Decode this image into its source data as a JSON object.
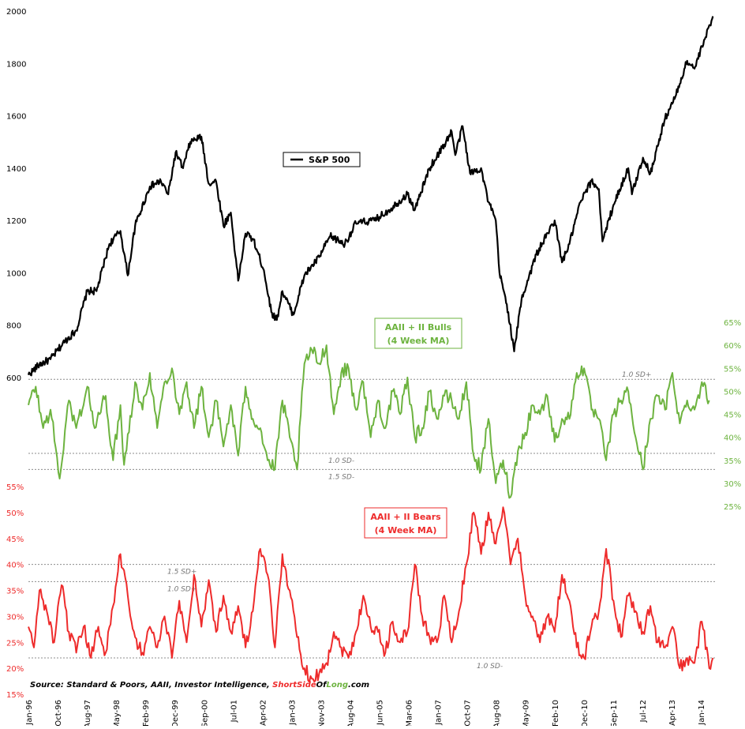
{
  "chart_data": {
    "type": "line",
    "source": {
      "prefix": "Source: Standard & Poors, AAII, Investor Intelligence, ",
      "brand_a": "ShortSide",
      "brand_b": "Of",
      "brand_c": "Long",
      "brand_d": ".com"
    },
    "x_ticks": [
      "Jan-96",
      "Oct-96",
      "Aug-97",
      "May-98",
      "Feb-99",
      "Dec-99",
      "Sep-00",
      "Jul-01",
      "Apr-02",
      "Jan-03",
      "Nov-03",
      "Aug-04",
      "Jun-05",
      "Mar-06",
      "Jan-07",
      "Oct-07",
      "Aug-08",
      "May-09",
      "Feb-10",
      "Dec-10",
      "Sep-11",
      "Jul-12",
      "Apr-13",
      "Jan-14"
    ],
    "x_range": [
      1996.0,
      2014.7
    ],
    "colors": {
      "sp500": "#000000",
      "bulls": "#6db33f",
      "bears": "#ee2b2b",
      "sd_line": "#8c8c8c"
    },
    "panels": [
      {
        "id": "sp500",
        "legend": "S&P 500",
        "y_ticks": [
          600,
          800,
          1000,
          1200,
          1400,
          1600,
          1800,
          2000
        ],
        "y_range": [
          600,
          2000
        ],
        "keypoints": [
          [
            1996.0,
            610
          ],
          [
            1996.3,
            650
          ],
          [
            1996.6,
            670
          ],
          [
            1997.0,
            740
          ],
          [
            1997.3,
            780
          ],
          [
            1997.6,
            930
          ],
          [
            1997.85,
            930
          ],
          [
            1998.2,
            1110
          ],
          [
            1998.5,
            1160
          ],
          [
            1998.7,
            990
          ],
          [
            1998.9,
            1180
          ],
          [
            1999.3,
            1330
          ],
          [
            1999.6,
            1350
          ],
          [
            1999.8,
            1300
          ],
          [
            2000.0,
            1460
          ],
          [
            2000.2,
            1400
          ],
          [
            2000.4,
            1500
          ],
          [
            2000.7,
            1520
          ],
          [
            2000.9,
            1340
          ],
          [
            2001.1,
            1350
          ],
          [
            2001.3,
            1180
          ],
          [
            2001.5,
            1230
          ],
          [
            2001.7,
            970
          ],
          [
            2001.9,
            1150
          ],
          [
            2002.1,
            1130
          ],
          [
            2002.4,
            1010
          ],
          [
            2002.6,
            850
          ],
          [
            2002.75,
            820
          ],
          [
            2002.9,
            930
          ],
          [
            2003.2,
            840
          ],
          [
            2003.5,
            990
          ],
          [
            2003.9,
            1060
          ],
          [
            2004.2,
            1140
          ],
          [
            2004.6,
            1110
          ],
          [
            2004.9,
            1190
          ],
          [
            2005.4,
            1200
          ],
          [
            2005.8,
            1240
          ],
          [
            2006.3,
            1300
          ],
          [
            2006.5,
            1240
          ],
          [
            2006.9,
            1400
          ],
          [
            2007.3,
            1490
          ],
          [
            2007.5,
            1540
          ],
          [
            2007.6,
            1450
          ],
          [
            2007.8,
            1560
          ],
          [
            2008.0,
            1380
          ],
          [
            2008.3,
            1400
          ],
          [
            2008.5,
            1270
          ],
          [
            2008.7,
            1200
          ],
          [
            2008.8,
            1000
          ],
          [
            2009.0,
            880
          ],
          [
            2009.2,
            700
          ],
          [
            2009.4,
            900
          ],
          [
            2009.8,
            1070
          ],
          [
            2010.3,
            1200
          ],
          [
            2010.5,
            1040
          ],
          [
            2010.7,
            1110
          ],
          [
            2011.0,
            1270
          ],
          [
            2011.3,
            1350
          ],
          [
            2011.5,
            1320
          ],
          [
            2011.6,
            1120
          ],
          [
            2011.9,
            1260
          ],
          [
            2012.3,
            1400
          ],
          [
            2012.4,
            1300
          ],
          [
            2012.7,
            1440
          ],
          [
            2012.9,
            1380
          ],
          [
            2013.3,
            1590
          ],
          [
            2013.6,
            1680
          ],
          [
            2013.9,
            1810
          ],
          [
            2014.1,
            1780
          ],
          [
            2014.4,
            1900
          ],
          [
            2014.6,
            1980
          ]
        ]
      },
      {
        "id": "bulls",
        "title_line1": "AAII + II Bulls",
        "title_line2": "(4 Week MA)",
        "y_ticks": [
          "65%",
          "60%",
          "55%",
          "50%",
          "45%",
          "40%",
          "35%",
          "30%",
          "25%"
        ],
        "y_ticks_values": [
          65,
          60,
          55,
          50,
          45,
          40,
          35,
          30,
          25
        ],
        "y_range": [
          25,
          65
        ],
        "sd_lines": [
          {
            "value": 52.6,
            "label": "1.0 SD+"
          },
          {
            "value": 36.5,
            "label": "1.0 SD-"
          },
          {
            "value": 33.0,
            "label": "1.5 SD-"
          }
        ],
        "keypoints": [
          [
            1996.0,
            47
          ],
          [
            1996.2,
            51
          ],
          [
            1996.4,
            42
          ],
          [
            1996.6,
            46
          ],
          [
            1996.85,
            31
          ],
          [
            1997.1,
            48
          ],
          [
            1997.3,
            42
          ],
          [
            1997.6,
            51
          ],
          [
            1997.8,
            42
          ],
          [
            1998.1,
            49
          ],
          [
            1998.3,
            35
          ],
          [
            1998.5,
            47
          ],
          [
            1998.6,
            34
          ],
          [
            1998.9,
            52
          ],
          [
            1999.1,
            46
          ],
          [
            1999.3,
            54
          ],
          [
            1999.5,
            42
          ],
          [
            1999.7,
            52
          ],
          [
            1999.9,
            55
          ],
          [
            2000.1,
            45
          ],
          [
            2000.3,
            52
          ],
          [
            2000.5,
            42
          ],
          [
            2000.7,
            51
          ],
          [
            2000.9,
            40
          ],
          [
            2001.1,
            48
          ],
          [
            2001.3,
            38
          ],
          [
            2001.5,
            47
          ],
          [
            2001.7,
            36
          ],
          [
            2001.9,
            51
          ],
          [
            2002.1,
            44
          ],
          [
            2002.3,
            42
          ],
          [
            2002.5,
            35
          ],
          [
            2002.7,
            33
          ],
          [
            2002.9,
            48
          ],
          [
            2003.1,
            40
          ],
          [
            2003.3,
            33
          ],
          [
            2003.5,
            56
          ],
          [
            2003.7,
            59
          ],
          [
            2003.9,
            56
          ],
          [
            2004.1,
            60
          ],
          [
            2004.3,
            45
          ],
          [
            2004.5,
            54
          ],
          [
            2004.7,
            55
          ],
          [
            2004.9,
            46
          ],
          [
            2005.1,
            52
          ],
          [
            2005.3,
            40
          ],
          [
            2005.5,
            48
          ],
          [
            2005.7,
            42
          ],
          [
            2005.9,
            50
          ],
          [
            2006.1,
            45
          ],
          [
            2006.3,
            53
          ],
          [
            2006.5,
            40
          ],
          [
            2006.7,
            42
          ],
          [
            2006.9,
            50
          ],
          [
            2007.1,
            44
          ],
          [
            2007.3,
            49
          ],
          [
            2007.5,
            48
          ],
          [
            2007.7,
            44
          ],
          [
            2007.9,
            52
          ],
          [
            2008.1,
            36
          ],
          [
            2008.3,
            33
          ],
          [
            2008.5,
            44
          ],
          [
            2008.7,
            30
          ],
          [
            2008.9,
            35
          ],
          [
            2009.1,
            27
          ],
          [
            2009.3,
            37
          ],
          [
            2009.5,
            41
          ],
          [
            2009.7,
            47
          ],
          [
            2009.9,
            45
          ],
          [
            2010.1,
            49
          ],
          [
            2010.3,
            39
          ],
          [
            2010.5,
            44
          ],
          [
            2010.7,
            44
          ],
          [
            2010.9,
            54
          ],
          [
            2011.1,
            55
          ],
          [
            2011.3,
            46
          ],
          [
            2011.5,
            44
          ],
          [
            2011.7,
            35
          ],
          [
            2011.9,
            45
          ],
          [
            2012.1,
            48
          ],
          [
            2012.3,
            50
          ],
          [
            2012.5,
            40
          ],
          [
            2012.7,
            33
          ],
          [
            2012.9,
            44
          ],
          [
            2013.1,
            49
          ],
          [
            2013.3,
            46
          ],
          [
            2013.5,
            54
          ],
          [
            2013.7,
            43
          ],
          [
            2013.9,
            48
          ],
          [
            2014.1,
            46
          ],
          [
            2014.3,
            52
          ],
          [
            2014.5,
            48
          ]
        ]
      },
      {
        "id": "bears",
        "title_line1": "AAII + II Bears",
        "title_line2": "(4 Week MA)",
        "y_ticks": [
          "55%",
          "50%",
          "45%",
          "40%",
          "35%",
          "30%",
          "25%",
          "20%",
          "15%"
        ],
        "y_ticks_values": [
          55,
          50,
          45,
          40,
          35,
          30,
          25,
          20,
          15
        ],
        "y_range": [
          15,
          55
        ],
        "sd_lines": [
          {
            "value": 40.0,
            "label": "1.5 SD+"
          },
          {
            "value": 36.7,
            "label": "1.0 SD+"
          },
          {
            "value": 22.0,
            "label": "1.0 SD-"
          }
        ],
        "keypoints": [
          [
            1996.0,
            28
          ],
          [
            1996.15,
            24
          ],
          [
            1996.3,
            35
          ],
          [
            1996.5,
            31
          ],
          [
            1996.7,
            25
          ],
          [
            1996.9,
            36
          ],
          [
            1997.1,
            27
          ],
          [
            1997.3,
            23
          ],
          [
            1997.5,
            28
          ],
          [
            1997.7,
            22
          ],
          [
            1997.9,
            28
          ],
          [
            1998.1,
            23
          ],
          [
            1998.3,
            32
          ],
          [
            1998.5,
            42
          ],
          [
            1998.7,
            34
          ],
          [
            1998.9,
            26
          ],
          [
            1999.1,
            23
          ],
          [
            1999.3,
            28
          ],
          [
            1999.5,
            24
          ],
          [
            1999.7,
            30
          ],
          [
            1999.9,
            22
          ],
          [
            2000.1,
            33
          ],
          [
            2000.3,
            25
          ],
          [
            2000.5,
            38
          ],
          [
            2000.7,
            28
          ],
          [
            2000.9,
            37
          ],
          [
            2001.1,
            27
          ],
          [
            2001.3,
            34
          ],
          [
            2001.5,
            27
          ],
          [
            2001.7,
            32
          ],
          [
            2001.9,
            24
          ],
          [
            2002.1,
            31
          ],
          [
            2002.3,
            43
          ],
          [
            2002.5,
            38
          ],
          [
            2002.7,
            24
          ],
          [
            2002.9,
            42
          ],
          [
            2003.1,
            35
          ],
          [
            2003.3,
            26
          ],
          [
            2003.5,
            20
          ],
          [
            2003.7,
            18
          ],
          [
            2003.9,
            19
          ],
          [
            2004.1,
            21
          ],
          [
            2004.3,
            27
          ],
          [
            2004.5,
            24
          ],
          [
            2004.7,
            22
          ],
          [
            2004.9,
            27
          ],
          [
            2005.1,
            34
          ],
          [
            2005.3,
            28
          ],
          [
            2005.5,
            27
          ],
          [
            2005.7,
            23
          ],
          [
            2005.9,
            29
          ],
          [
            2006.1,
            25
          ],
          [
            2006.3,
            27
          ],
          [
            2006.5,
            40
          ],
          [
            2006.7,
            30
          ],
          [
            2006.9,
            26
          ],
          [
            2007.1,
            25
          ],
          [
            2007.3,
            34
          ],
          [
            2007.5,
            25
          ],
          [
            2007.7,
            31
          ],
          [
            2007.9,
            40
          ],
          [
            2008.1,
            50
          ],
          [
            2008.3,
            42
          ],
          [
            2008.5,
            50
          ],
          [
            2008.7,
            44
          ],
          [
            2008.9,
            51
          ],
          [
            2009.1,
            40
          ],
          [
            2009.3,
            45
          ],
          [
            2009.5,
            34
          ],
          [
            2009.7,
            30
          ],
          [
            2009.9,
            25
          ],
          [
            2010.1,
            30
          ],
          [
            2010.3,
            27
          ],
          [
            2010.5,
            38
          ],
          [
            2010.7,
            33
          ],
          [
            2010.9,
            24
          ],
          [
            2011.1,
            22
          ],
          [
            2011.3,
            28
          ],
          [
            2011.5,
            31
          ],
          [
            2011.7,
            43
          ],
          [
            2011.9,
            33
          ],
          [
            2012.1,
            26
          ],
          [
            2012.3,
            34
          ],
          [
            2012.5,
            31
          ],
          [
            2012.7,
            27
          ],
          [
            2012.9,
            32
          ],
          [
            2013.1,
            25
          ],
          [
            2013.3,
            24
          ],
          [
            2013.5,
            28
          ],
          [
            2013.7,
            20
          ],
          [
            2013.9,
            22
          ],
          [
            2014.1,
            21
          ],
          [
            2014.3,
            29
          ],
          [
            2014.5,
            20
          ],
          [
            2014.6,
            22
          ]
        ]
      }
    ]
  }
}
